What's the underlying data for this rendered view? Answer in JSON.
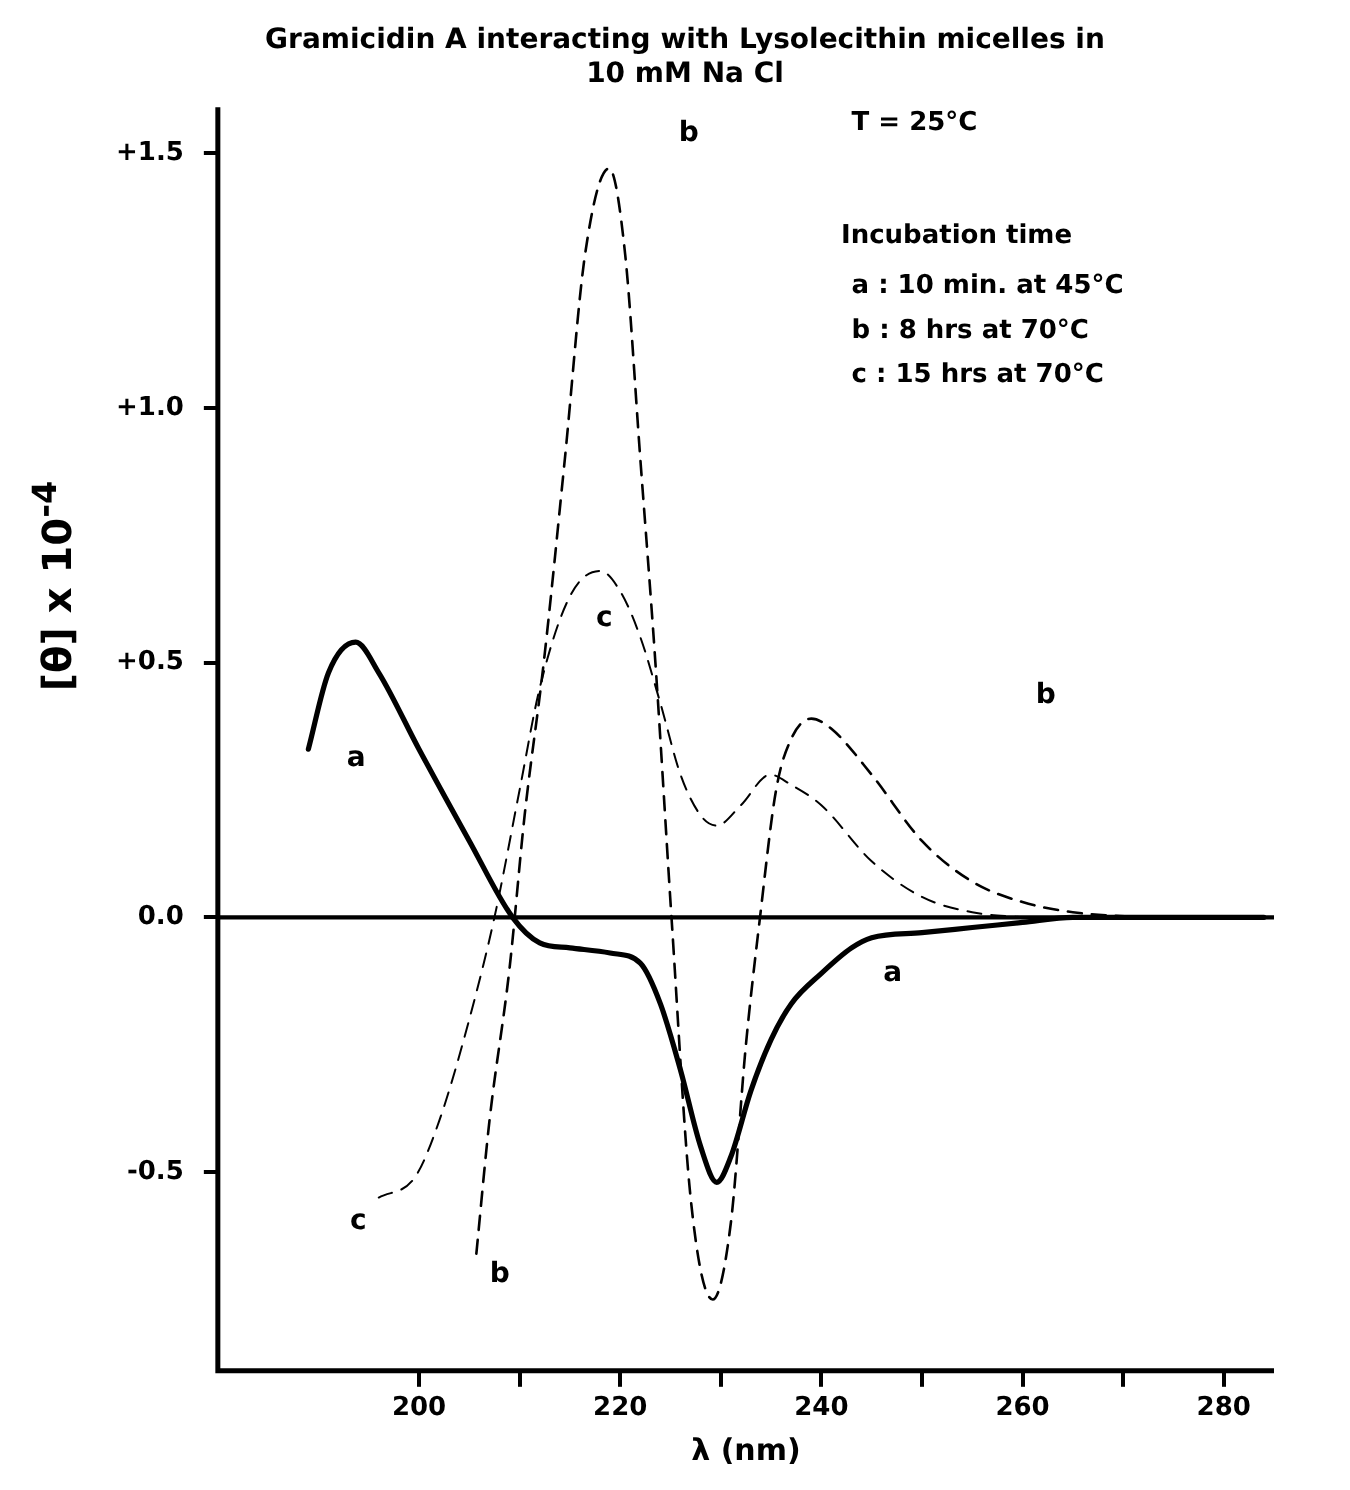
{
  "chart_data": {
    "type": "line",
    "title": "Gramicidin A interacting with Lysolecithin micelles in 10 mM Na Cl",
    "xlabel": "λ (nm)",
    "ylabel": "[θ] x 10$^{-4}$",
    "xlim": [
      180,
      285
    ],
    "xticks": [
      200,
      {
        "value": 210,
        "label": null
      },
      220,
      {
        "value": 230,
        "label": null
      },
      240,
      {
        "value": 250,
        "label": null
      },
      260,
      {
        "value": 270,
        "label": null
      },
      280
    ],
    "ylim": [
      -0.89,
      1.59
    ],
    "yticks": [
      {
        "value": 1.5,
        "label": "+1.5"
      },
      {
        "value": 1.0,
        "label": "+1.0"
      },
      {
        "value": 0.5,
        "label": "+0.5"
      },
      {
        "value": 0,
        "label": "0.0"
      },
      {
        "value": -0.5,
        "label": "-0.5"
      }
    ],
    "ref_lines": [
      {
        "axis": "y",
        "value": 0,
        "color": "#000000",
        "line_style": "solid"
      }
    ],
    "grid": false,
    "legend": false,
    "marker": "none",
    "series": [
      {
        "color": "#000000",
        "line_style": "solid",
        "x": [
          189,
          191,
          193.7,
          196,
          200,
          205,
          209.3,
          212,
          215,
          219,
          222,
          224,
          226,
          228,
          229.6,
          231,
          233,
          235,
          237,
          240,
          243,
          245,
          250,
          255,
          260,
          265,
          270,
          284
        ],
        "values": [
          0.33,
          0.48,
          0.54,
          0.48,
          0.33,
          0.15,
          0.0,
          -0.05,
          -0.06,
          -0.07,
          -0.09,
          -0.17,
          -0.3,
          -0.45,
          -0.52,
          -0.47,
          -0.34,
          -0.24,
          -0.17,
          -0.11,
          -0.06,
          -0.04,
          -0.03,
          -0.02,
          -0.01,
          0.0,
          0.0,
          0.0
        ]
      },
      {
        "color": "#000000",
        "line_style": "dashed",
        "x": [
          205.7,
          207,
          209,
          210.5,
          212.4,
          214.5,
          216.5,
          218.9,
          220.5,
          222,
          223.5,
          225.1,
          227,
          229.2,
          231,
          232.5,
          233.9,
          235.5,
          237,
          239,
          241,
          245,
          250,
          255,
          260,
          265,
          272
        ],
        "values": [
          -0.66,
          -0.4,
          -0.1,
          0.2,
          0.5,
          0.9,
          1.3,
          1.47,
          1.3,
          0.9,
          0.5,
          0.0,
          -0.55,
          -0.75,
          -0.6,
          -0.25,
          0.0,
          0.25,
          0.35,
          0.39,
          0.37,
          0.28,
          0.15,
          0.07,
          0.03,
          0.01,
          0.0
        ]
      },
      {
        "color": "#000000",
        "line_style": "dashed",
        "x": [
          196,
          199.6,
          202,
          205,
          207.5,
          210,
          212,
          215,
          218,
          220,
          222,
          224,
          226,
          228,
          229.6,
          232,
          234.9,
          237,
          240,
          245,
          250,
          255,
          260
        ],
        "values": [
          -0.55,
          -0.51,
          -0.4,
          -0.2,
          0.0,
          0.25,
          0.45,
          0.63,
          0.68,
          0.64,
          0.55,
          0.42,
          0.28,
          0.2,
          0.18,
          0.22,
          0.28,
          0.26,
          0.22,
          0.11,
          0.04,
          0.01,
          0.0
        ]
      }
    ],
    "annotations": [
      "T = 25°C",
      "Incubation time",
      "a : 10 min. at 45°C",
      "b : 8 hrs at 70°C",
      "c : 15 hrs at 70°C",
      "a",
      "a",
      "b",
      "b",
      "b",
      "c",
      "c"
    ]
  }
}
